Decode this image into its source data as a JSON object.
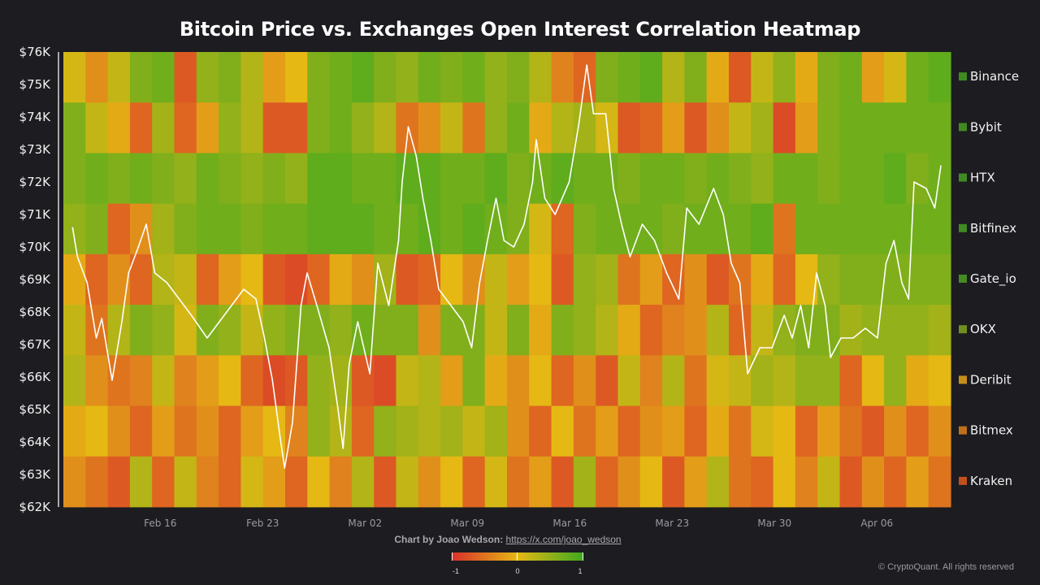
{
  "chart_data": {
    "type": "heatmap",
    "title": "Bitcoin Price vs. Exchanges Open Interest Correlation Heatmap",
    "x_range": [
      "Feb 09 09:00",
      "Apr 11 01:00"
    ],
    "x_ticks": [
      "Feb 16",
      "Feb 23",
      "Mar 02",
      "Mar 09",
      "Mar 16",
      "Mar 23",
      "Mar 30",
      "Apr 06"
    ],
    "y_range": [
      62,
      76
    ],
    "y_ticks": [
      "$76K",
      "$75K",
      "$74K",
      "$73K",
      "$72K",
      "$71K",
      "$70K",
      "$69K",
      "$68K",
      "$67K",
      "$66K",
      "$65K",
      "$64K",
      "$63K",
      "$62K"
    ],
    "grid": false,
    "legend_placement": "right",
    "colorscale": {
      "min": -1,
      "mid": 0,
      "max": 1,
      "colors": [
        "#d9302a",
        "#e5b814",
        "#3ea91f"
      ],
      "tick_labels": [
        "-1",
        "0",
        "1"
      ]
    },
    "rows": [
      {
        "name": "Binance",
        "swatch": "#3f8a22",
        "values": [
          0.1,
          -0.3,
          0.2,
          0.6,
          0.7,
          -0.7,
          0.5,
          0.6,
          0.3,
          -0.2,
          0.0,
          0.6,
          0.7,
          0.8,
          0.6,
          0.5,
          0.7,
          0.6,
          0.7,
          0.5,
          0.6,
          0.3,
          -0.4,
          -0.6,
          0.6,
          0.7,
          0.8,
          0.3,
          0.6,
          -0.1,
          -0.7,
          0.2,
          0.5,
          -0.1,
          0.6,
          0.7,
          -0.2,
          0.1,
          0.7,
          0.8
        ]
      },
      {
        "name": "Bybit",
        "swatch": "#3f8a22",
        "values": [
          0.6,
          0.2,
          -0.1,
          -0.6,
          0.4,
          -0.6,
          -0.2,
          0.5,
          0.3,
          -0.7,
          -0.7,
          0.6,
          0.7,
          0.5,
          0.3,
          -0.5,
          -0.3,
          0.2,
          -0.5,
          0.5,
          0.7,
          -0.1,
          0.3,
          0.4,
          0.1,
          -0.7,
          -0.6,
          -0.2,
          -0.7,
          -0.3,
          0.2,
          0.4,
          -0.8,
          -0.2,
          0.6,
          0.7,
          0.7,
          0.7,
          0.7,
          0.7
        ]
      },
      {
        "name": "HTX",
        "swatch": "#3f8a22",
        "values": [
          0.6,
          0.7,
          0.6,
          0.7,
          0.6,
          0.5,
          0.7,
          0.6,
          0.5,
          0.6,
          0.5,
          0.8,
          0.8,
          0.7,
          0.7,
          0.8,
          0.8,
          0.7,
          0.7,
          0.8,
          0.6,
          0.7,
          0.8,
          0.7,
          0.7,
          0.6,
          0.7,
          0.7,
          0.6,
          0.7,
          0.6,
          0.5,
          0.7,
          0.7,
          0.6,
          0.7,
          0.7,
          0.8,
          0.6,
          0.7
        ]
      },
      {
        "name": "Bitfinex",
        "swatch": "#3f8a22",
        "values": [
          0.5,
          0.6,
          -0.6,
          -0.3,
          0.4,
          0.6,
          0.7,
          0.7,
          0.6,
          0.7,
          0.7,
          0.8,
          0.8,
          0.8,
          0.7,
          0.7,
          0.8,
          0.7,
          0.8,
          0.7,
          0.6,
          0.1,
          -0.6,
          0.6,
          0.7,
          0.7,
          0.7,
          0.6,
          0.7,
          0.7,
          0.7,
          0.8,
          -0.5,
          0.7,
          0.7,
          0.7,
          0.7,
          0.7,
          0.7,
          0.7
        ]
      },
      {
        "name": "Gate_io",
        "swatch": "#468a24",
        "values": [
          -0.1,
          -0.6,
          -0.3,
          -0.6,
          0.3,
          0.2,
          -0.6,
          -0.2,
          0.0,
          -0.7,
          -0.8,
          -0.6,
          -0.1,
          -0.3,
          0.4,
          -0.7,
          -0.6,
          0.0,
          -0.3,
          0.2,
          -0.2,
          0.0,
          -0.7,
          0.5,
          0.4,
          -0.5,
          -0.2,
          -0.6,
          -0.3,
          -0.7,
          -0.5,
          -0.1,
          -0.6,
          0.0,
          0.5,
          0.6,
          0.6,
          0.6,
          0.6,
          0.6
        ]
      },
      {
        "name": "OKX",
        "swatch": "#6f8e20",
        "values": [
          0.2,
          -0.5,
          0.3,
          0.6,
          0.5,
          0.1,
          0.6,
          0.5,
          0.2,
          0.5,
          0.6,
          0.6,
          0.5,
          0.7,
          0.6,
          0.6,
          -0.3,
          0.6,
          0.6,
          0.2,
          0.6,
          -0.1,
          0.6,
          0.5,
          0.3,
          -0.1,
          -0.6,
          -0.4,
          -0.3,
          0.3,
          -0.6,
          0.2,
          0.5,
          0.6,
          0.6,
          0.4,
          0.5,
          0.5,
          0.5,
          0.4
        ]
      },
      {
        "name": "Deribit",
        "swatch": "#c4901a",
        "values": [
          0.3,
          -0.3,
          -0.5,
          -0.4,
          0.2,
          -0.4,
          -0.2,
          0.0,
          -0.6,
          -0.8,
          -0.7,
          0.5,
          0.4,
          -0.7,
          -0.8,
          0.2,
          0.3,
          -0.2,
          0.6,
          -0.1,
          -0.3,
          0.0,
          -0.6,
          -0.3,
          -0.7,
          0.2,
          -0.4,
          0.3,
          -0.5,
          0.1,
          0.2,
          0.4,
          0.3,
          0.5,
          0.5,
          -0.6,
          0.0,
          0.5,
          -0.1,
          0.0
        ]
      },
      {
        "name": "Bitmex",
        "swatch": "#c0701c",
        "values": [
          -0.1,
          0.0,
          -0.3,
          -0.6,
          -0.2,
          -0.5,
          -0.3,
          -0.6,
          -0.2,
          0.0,
          -0.4,
          0.5,
          0.3,
          -0.6,
          0.5,
          0.4,
          0.3,
          0.4,
          0.2,
          0.4,
          -0.3,
          -0.6,
          0.0,
          -0.5,
          -0.2,
          -0.6,
          -0.3,
          -0.2,
          -0.6,
          -0.1,
          -0.5,
          0.1,
          0.0,
          -0.6,
          -0.2,
          -0.5,
          -0.7,
          -0.3,
          -0.6,
          -0.3
        ]
      },
      {
        "name": "Kraken",
        "swatch": "#c2501c",
        "values": [
          -0.3,
          -0.5,
          -0.7,
          0.3,
          -0.6,
          0.2,
          -0.4,
          -0.6,
          0.1,
          -0.2,
          -0.6,
          0.0,
          -0.4,
          0.3,
          -0.7,
          0.2,
          -0.3,
          0.0,
          -0.6,
          0.1,
          -0.5,
          -0.2,
          -0.7,
          0.4,
          -0.6,
          -0.3,
          0.0,
          -0.7,
          -0.2,
          0.3,
          -0.5,
          -0.6,
          0.0,
          -0.4,
          0.2,
          -0.7,
          -0.3,
          -0.6,
          -0.2,
          -0.5
        ]
      }
    ],
    "price_line": {
      "color": "#ffffff",
      "unit": "$K",
      "points": [
        [
          "Feb 10 00:00",
          70.6
        ],
        [
          "Feb 10 08:00",
          69.7
        ],
        [
          "Feb 11 00:00",
          68.9
        ],
        [
          "Feb 11 15:00",
          67.2
        ],
        [
          "Feb 12 00:00",
          67.8
        ],
        [
          "Feb 12 17:00",
          65.9
        ],
        [
          "Feb 13 09:00",
          67.7
        ],
        [
          "Feb 13 20:00",
          69.2
        ],
        [
          "Feb 14 12:00",
          70.0
        ],
        [
          "Feb 15 01:00",
          70.7
        ],
        [
          "Feb 15 15:00",
          69.2
        ],
        [
          "Feb 16 11:00",
          68.9
        ],
        [
          "Feb 17 07:00",
          68.4
        ],
        [
          "Feb 18 03:00",
          67.9
        ],
        [
          "Feb 19 05:00",
          67.2
        ],
        [
          "Feb 20 01:00",
          67.7
        ],
        [
          "Feb 20 21:00",
          68.2
        ],
        [
          "Feb 21 17:00",
          68.7
        ],
        [
          "Feb 22 13:00",
          68.4
        ],
        [
          "Feb 23 03:00",
          67.2
        ],
        [
          "Feb 23 16:00",
          65.9
        ],
        [
          "Feb 24 05:00",
          64.1
        ],
        [
          "Feb 24 12:00",
          63.2
        ],
        [
          "Feb 25 01:00",
          64.6
        ],
        [
          "Feb 25 15:00",
          68.2
        ],
        [
          "Feb 26 01:00",
          69.2
        ],
        [
          "Feb 26 17:00",
          68.2
        ],
        [
          "Feb 27 13:00",
          66.9
        ],
        [
          "Feb 28 03:00",
          65.1
        ],
        [
          "Feb 28 12:00",
          63.8
        ],
        [
          "Feb 28 22:00",
          66.4
        ],
        [
          "Mar 01 12:00",
          67.7
        ],
        [
          "Mar 02 08:00",
          66.1
        ],
        [
          "Mar 02 21:00",
          69.5
        ],
        [
          "Mar 03 15:00",
          68.2
        ],
        [
          "Mar 04 07:00",
          70.2
        ],
        [
          "Mar 04 13:00",
          72.0
        ],
        [
          "Mar 04 23:00",
          73.7
        ],
        [
          "Mar 05 12:00",
          72.8
        ],
        [
          "Mar 05 23:00",
          71.5
        ],
        [
          "Mar 06 12:00",
          70.2
        ],
        [
          "Mar 07 01:00",
          68.7
        ],
        [
          "Mar 07 21:00",
          68.2
        ],
        [
          "Mar 08 17:00",
          67.7
        ],
        [
          "Mar 09 07:00",
          66.9
        ],
        [
          "Mar 09 20:00",
          68.9
        ],
        [
          "Mar 10 09:00",
          70.2
        ],
        [
          "Mar 10 23:00",
          71.5
        ],
        [
          "Mar 11 12:00",
          70.2
        ],
        [
          "Mar 12 04:00",
          70.0
        ],
        [
          "Mar 12 21:00",
          70.7
        ],
        [
          "Mar 13 11:00",
          72.0
        ],
        [
          "Mar 13 17:00",
          73.3
        ],
        [
          "Mar 14 07:00",
          71.5
        ],
        [
          "Mar 15 00:00",
          71.0
        ],
        [
          "Mar 15 23:00",
          72.0
        ],
        [
          "Mar 16 15:00",
          73.8
        ],
        [
          "Mar 17 04:00",
          75.6
        ],
        [
          "Mar 17 15:00",
          74.1
        ],
        [
          "Mar 18 11:00",
          74.1
        ],
        [
          "Mar 19 00:00",
          71.8
        ],
        [
          "Mar 19 13:00",
          70.7
        ],
        [
          "Mar 20 03:00",
          69.7
        ],
        [
          "Mar 20 23:00",
          70.7
        ],
        [
          "Mar 21 19:00",
          70.2
        ],
        [
          "Mar 22 15:00",
          69.2
        ],
        [
          "Mar 23 11:00",
          68.4
        ],
        [
          "Mar 24 00:00",
          71.2
        ],
        [
          "Mar 24 20:00",
          70.7
        ],
        [
          "Mar 25 20:00",
          71.8
        ],
        [
          "Mar 26 12:00",
          71.0
        ],
        [
          "Mar 27 01:00",
          69.5
        ],
        [
          "Mar 27 15:00",
          68.9
        ],
        [
          "Mar 28 04:00",
          66.1
        ],
        [
          "Mar 29 00:00",
          66.9
        ],
        [
          "Mar 29 20:00",
          66.9
        ],
        [
          "Mar 30 16:00",
          67.9
        ],
        [
          "Mar 31 05:00",
          67.2
        ],
        [
          "Mar 31 19:00",
          68.2
        ],
        [
          "Apr 01 08:00",
          66.9
        ],
        [
          "Apr 01 21:00",
          69.2
        ],
        [
          "Apr 02 11:00",
          68.2
        ],
        [
          "Apr 02 20:00",
          66.6
        ],
        [
          "Apr 03 13:00",
          67.2
        ],
        [
          "Apr 04 09:00",
          67.2
        ],
        [
          "Apr 05 05:00",
          67.5
        ],
        [
          "Apr 06 01:00",
          67.2
        ],
        [
          "Apr 06 15:00",
          69.5
        ],
        [
          "Apr 07 04:00",
          70.2
        ],
        [
          "Apr 07 17:00",
          68.9
        ],
        [
          "Apr 08 04:00",
          68.4
        ],
        [
          "Apr 08 13:00",
          72.0
        ],
        [
          "Apr 09 09:00",
          71.8
        ],
        [
          "Apr 09 23:00",
          71.2
        ],
        [
          "Apr 10 09:00",
          72.5
        ]
      ]
    }
  },
  "credit": {
    "label": "Chart by Joao Wedson:",
    "link": "https://x.com/joao_wedson"
  },
  "copyright": "© CryptoQuant. All rights reserved"
}
